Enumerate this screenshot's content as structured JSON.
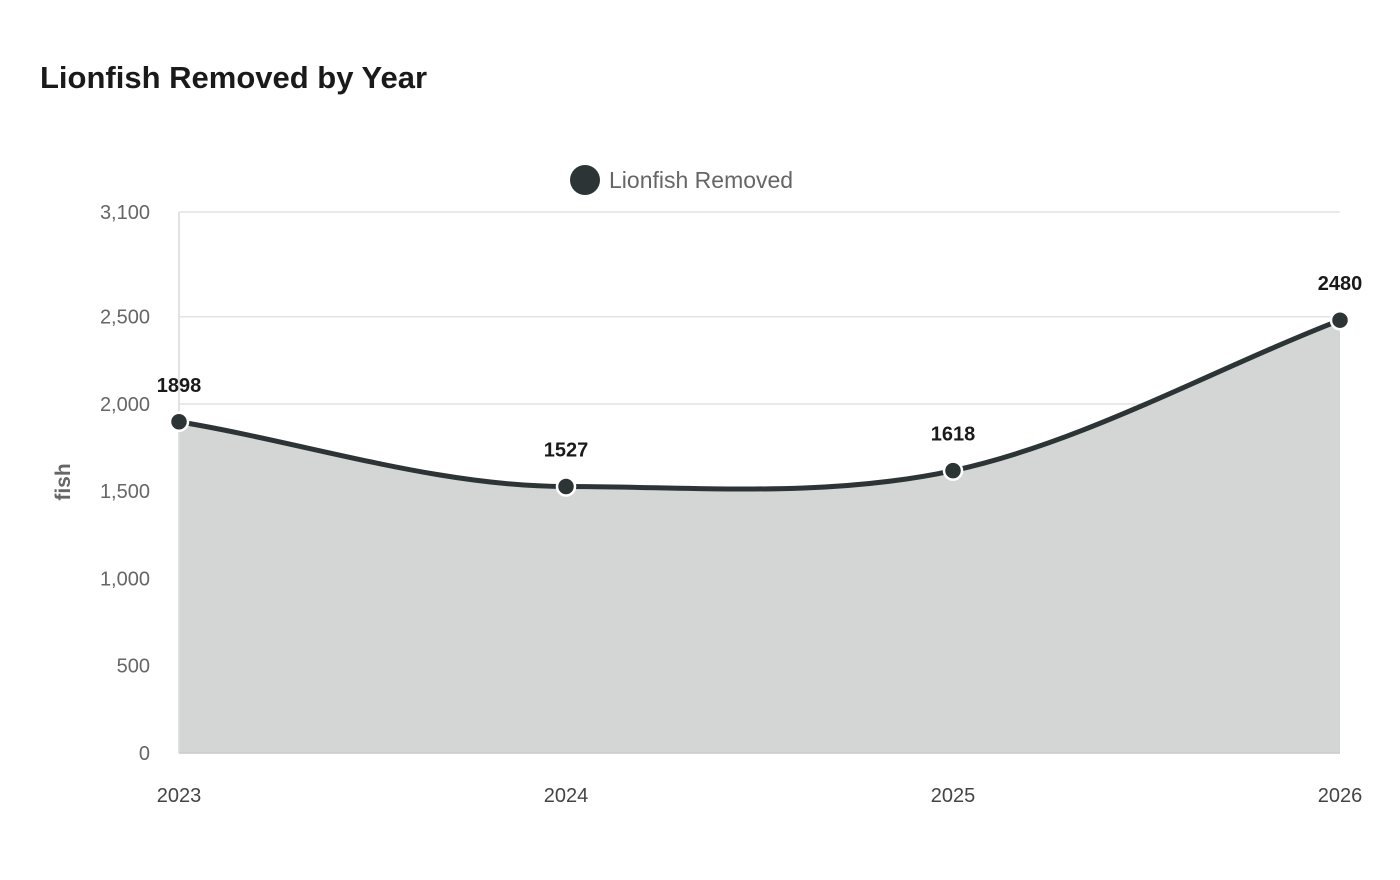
{
  "chart_data": {
    "type": "area",
    "title": "Lionfish Removed by Year",
    "xlabel": "",
    "ylabel": "fish",
    "categories": [
      "2023",
      "2024",
      "2025",
      "2026"
    ],
    "series": [
      {
        "name": "Lionfish Removed",
        "values": [
          1898,
          1527,
          1618,
          2480
        ]
      }
    ],
    "y_ticks": [
      0,
      500,
      1000,
      1500,
      2000,
      2500,
      3100
    ],
    "y_tick_labels": [
      "0",
      "500",
      "1,000",
      "1,500",
      "2,000",
      "2,500",
      "3,100"
    ],
    "ylim": [
      0,
      3100
    ],
    "grid": true,
    "legend_position": "top-center",
    "colors": {
      "line": "#2d3436",
      "fill": "#d4d6d6",
      "grid": "#e3e3e3",
      "marker_stroke": "#ffffff"
    }
  }
}
